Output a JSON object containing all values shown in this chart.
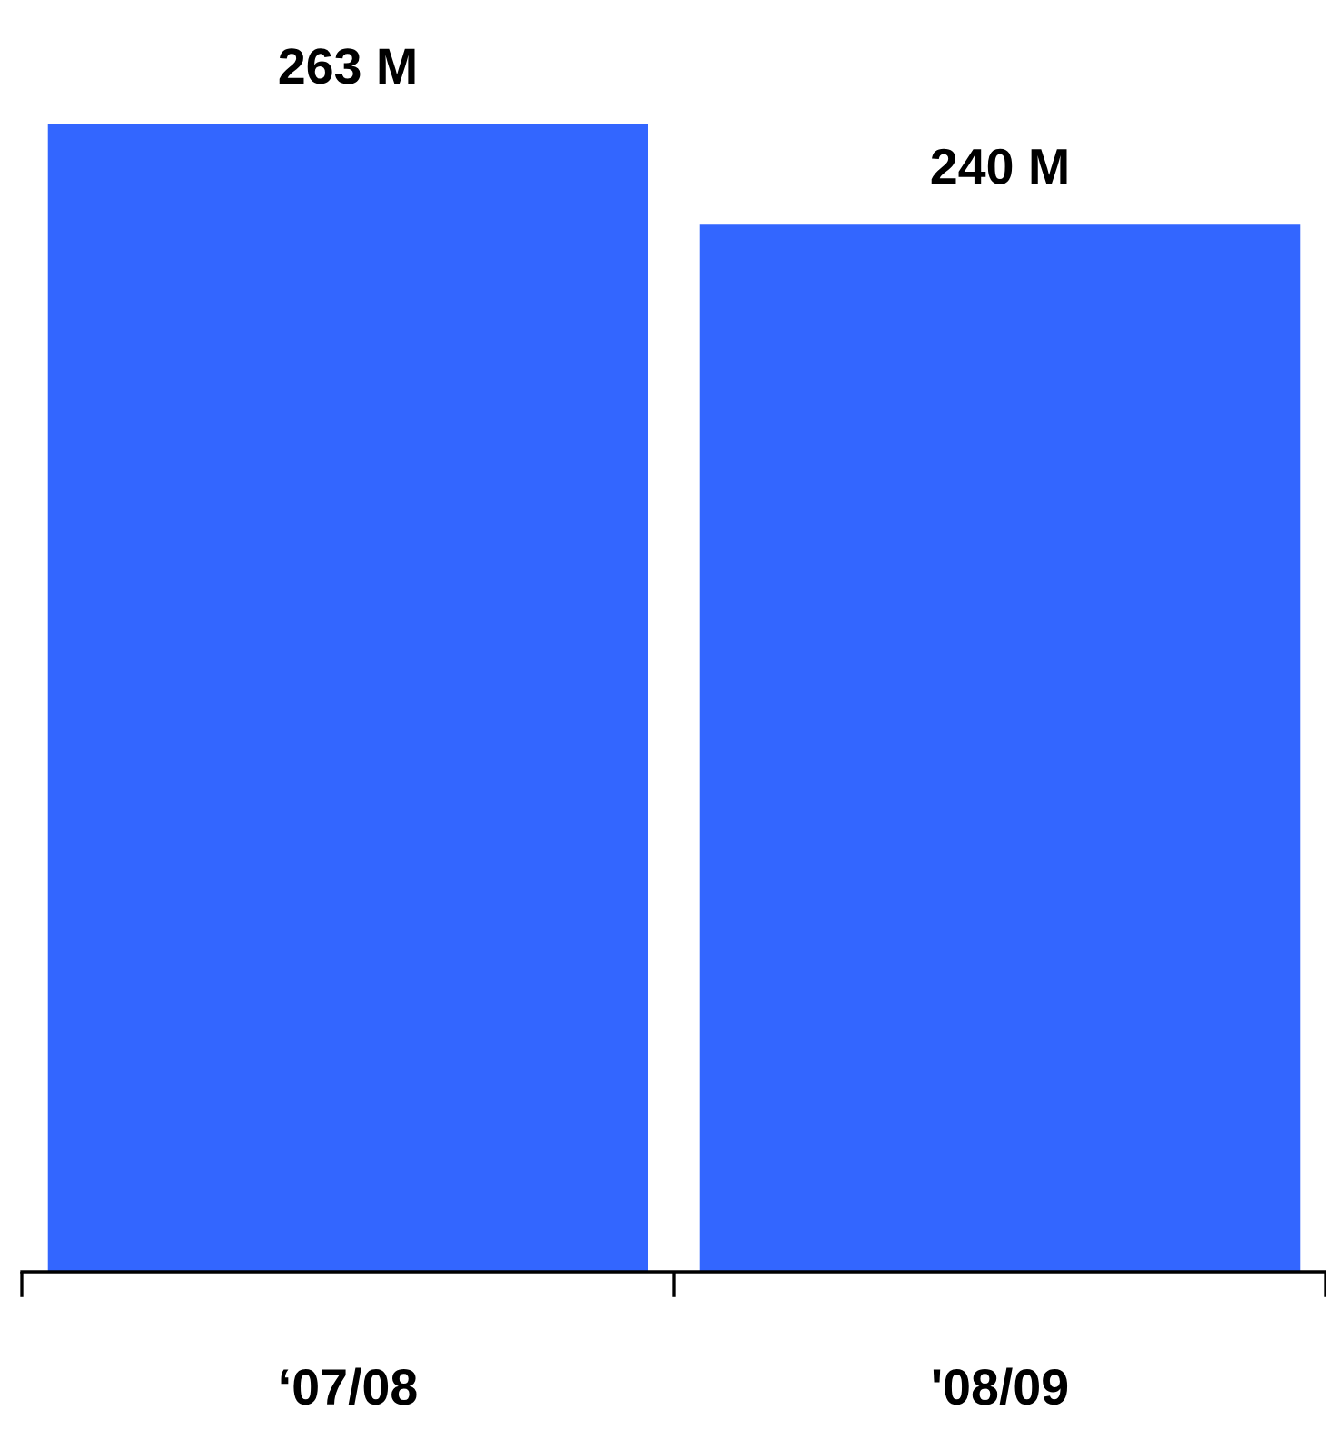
{
  "chart_data": {
    "type": "bar",
    "categories": [
      "‘07/08",
      "'08/09"
    ],
    "values": [
      263,
      240
    ],
    "value_labels": [
      "263 M",
      "240 M"
    ],
    "color": "#3366ff",
    "grid": false,
    "legend": false
  }
}
